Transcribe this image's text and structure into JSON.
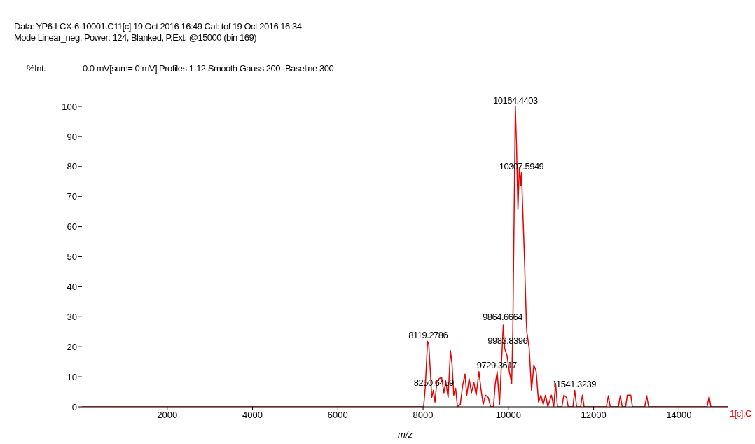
{
  "chart_data": {
    "type": "line",
    "title": "Data: YP6-LCX-6-10001.C11[c] 19 Oct 2016 16:49 Cal: tof 19 Oct 2016 16:34",
    "subtitle": "Mode Linear_neg, Power: 124, Blanked, P.Ext. @15000 (bin 169)",
    "xlabel": "m/z",
    "ylabel": "%Int.",
    "annotations": [
      "0.0 mV[sum= 0 mV]  Profiles 1-12 Smooth Gauss 200 -Baseline 300",
      {
        "text": "10164.4403",
        "x": 10164,
        "y": 100
      },
      {
        "text": "10307.5949",
        "x": 10307,
        "y": 78
      },
      {
        "text": "9864.6664",
        "x": 9864,
        "y": 28
      },
      {
        "text": "9983.8396",
        "x": 9983,
        "y": 20
      },
      {
        "text": "9729.3617",
        "x": 9729,
        "y": 12
      },
      {
        "text": "8119.2786",
        "x": 8119,
        "y": 22
      },
      {
        "text": "8250.6459",
        "x": 8250,
        "y": 6
      },
      {
        "text": "11541.3239",
        "x": 11541,
        "y": 5.5
      }
    ],
    "series": [
      {
        "name": "1[c].C",
        "color": "#e60000",
        "x": [
          0,
          8012,
          8050,
          8105,
          8132,
          8171,
          8204,
          8242,
          8280,
          8324,
          8379,
          8434,
          8489,
          8532,
          8587,
          8642,
          8680,
          8719,
          8763,
          8806,
          8872,
          8927,
          8982,
          9026,
          9080,
          9135,
          9190,
          9245,
          9311,
          9355,
          9409,
          9464,
          9530,
          9585,
          9650,
          9694,
          9738,
          9793,
          9837,
          9881,
          9913,
          9968,
          10023,
          10078,
          10105,
          10164,
          10192,
          10225,
          10258,
          10291,
          10307,
          10373,
          10422,
          10434,
          10489,
          10544,
          10598,
          10653,
          10708,
          10763,
          10818,
          10872,
          10927,
          11009,
          11064,
          11108,
          11152,
          11256,
          11300,
          11366,
          11404,
          11514,
          11557,
          11601,
          11694,
          11738,
          11777,
          12300,
          12346,
          12390,
          12580,
          12625,
          12670,
          12750,
          12790,
          12872,
          12910,
          13200,
          13245,
          13290,
          14660,
          14708,
          14750,
          15160
        ],
        "values": [
          0,
          0,
          6.2,
          21.8,
          21,
          11.7,
          3.1,
          5.5,
          1.6,
          8.6,
          9.4,
          9.8,
          4.7,
          8.6,
          3.1,
          18.7,
          14,
          3.9,
          6.2,
          0,
          0.8,
          7,
          10.9,
          3.9,
          9.4,
          4.7,
          8.2,
          3.9,
          11.7,
          6.2,
          0.8,
          3.9,
          3.1,
          0,
          0,
          7.8,
          11.7,
          0.8,
          14,
          27.3,
          19.5,
          17.1,
          11.7,
          7.8,
          25.7,
          100,
          86.7,
          65.7,
          79.7,
          73.8,
          78,
          51.6,
          28.3,
          24.9,
          19.5,
          5.5,
          14,
          11.7,
          1.6,
          3.9,
          0.8,
          3.9,
          0,
          3.9,
          0,
          7.8,
          0,
          0,
          3.9,
          3.1,
          0,
          0,
          5.5,
          0,
          0,
          3.9,
          0,
          0,
          3.7,
          0,
          0,
          3.7,
          0,
          0,
          3.9,
          3.9,
          0,
          0,
          3.7,
          0,
          0,
          3.4,
          0,
          0
        ]
      }
    ],
    "xlim": [
      0,
      15160
    ],
    "xticks": [
      2000,
      4000,
      6000,
      8000,
      10000,
      12000,
      14000
    ],
    "ylim": [
      0,
      100
    ],
    "yticks": [
      0,
      10,
      20,
      30,
      40,
      50,
      60,
      70,
      80,
      90,
      100
    ],
    "grid": false,
    "legend": false,
    "marker": "none",
    "line_style": "solid"
  }
}
